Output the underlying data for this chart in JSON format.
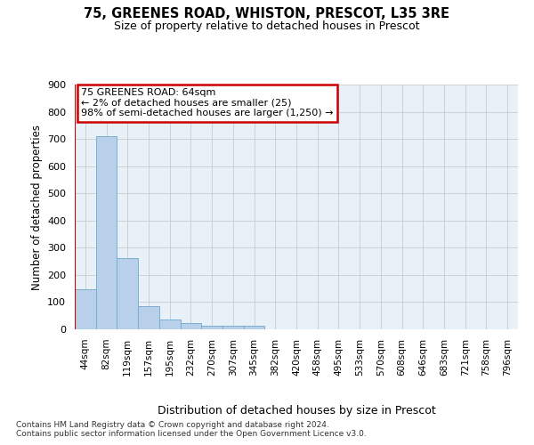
{
  "title": "75, GREENES ROAD, WHISTON, PRESCOT, L35 3RE",
  "subtitle": "Size of property relative to detached houses in Prescot",
  "xlabel": "Distribution of detached houses by size in Prescot",
  "ylabel": "Number of detached properties",
  "categories": [
    "44sqm",
    "82sqm",
    "119sqm",
    "157sqm",
    "195sqm",
    "232sqm",
    "270sqm",
    "307sqm",
    "345sqm",
    "382sqm",
    "420sqm",
    "458sqm",
    "495sqm",
    "533sqm",
    "570sqm",
    "608sqm",
    "646sqm",
    "683sqm",
    "721sqm",
    "758sqm",
    "796sqm"
  ],
  "values": [
    147,
    710,
    263,
    85,
    37,
    22,
    14,
    14,
    12,
    0,
    0,
    0,
    0,
    0,
    0,
    0,
    0,
    0,
    0,
    0,
    0
  ],
  "bar_color": "#b8d0ea",
  "bar_edge_color": "#7aaed0",
  "grid_color": "#cccccc",
  "background_color": "#e8f0f8",
  "vline_color": "#cc0000",
  "annotation_text": "75 GREENES ROAD: 64sqm\n← 2% of detached houses are smaller (25)\n98% of semi-detached houses are larger (1,250) →",
  "annotation_box_color": "#ffffff",
  "annotation_box_edge": "#cc0000",
  "footer": "Contains HM Land Registry data © Crown copyright and database right 2024.\nContains public sector information licensed under the Open Government Licence v3.0.",
  "ylim": [
    0,
    900
  ],
  "yticks": [
    0,
    100,
    200,
    300,
    400,
    500,
    600,
    700,
    800,
    900
  ]
}
